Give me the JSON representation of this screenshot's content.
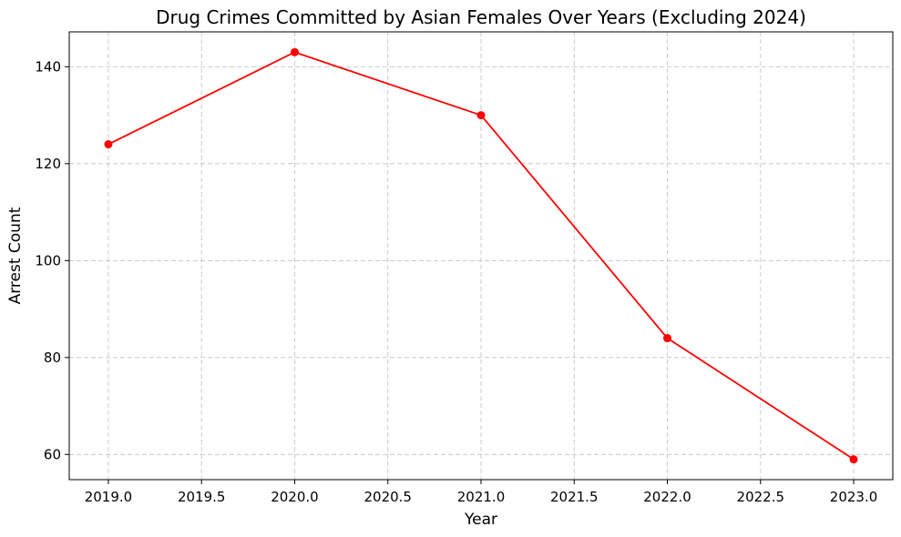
{
  "chart_data": {
    "type": "line",
    "title": "Drug Crimes Committed by Asian Females Over Years (Excluding 2024)",
    "xlabel": "Year",
    "ylabel": "Arrest Count",
    "x": [
      2019,
      2020,
      2021,
      2022,
      2023
    ],
    "series": [
      {
        "values": [
          124,
          143,
          130,
          84,
          59
        ],
        "color": "#ff0000",
        "marker": "circle"
      }
    ],
    "xlim": [
      2018.79,
      2023.21
    ],
    "ylim": [
      54.8,
      147.2
    ],
    "xticks": [
      "2019.0",
      "2019.5",
      "2020.0",
      "2020.5",
      "2021.0",
      "2021.5",
      "2022.0",
      "2022.5",
      "2023.0"
    ],
    "yticks": [
      "60",
      "80",
      "100",
      "120",
      "140"
    ],
    "grid": true,
    "grid_style": "dashed"
  }
}
